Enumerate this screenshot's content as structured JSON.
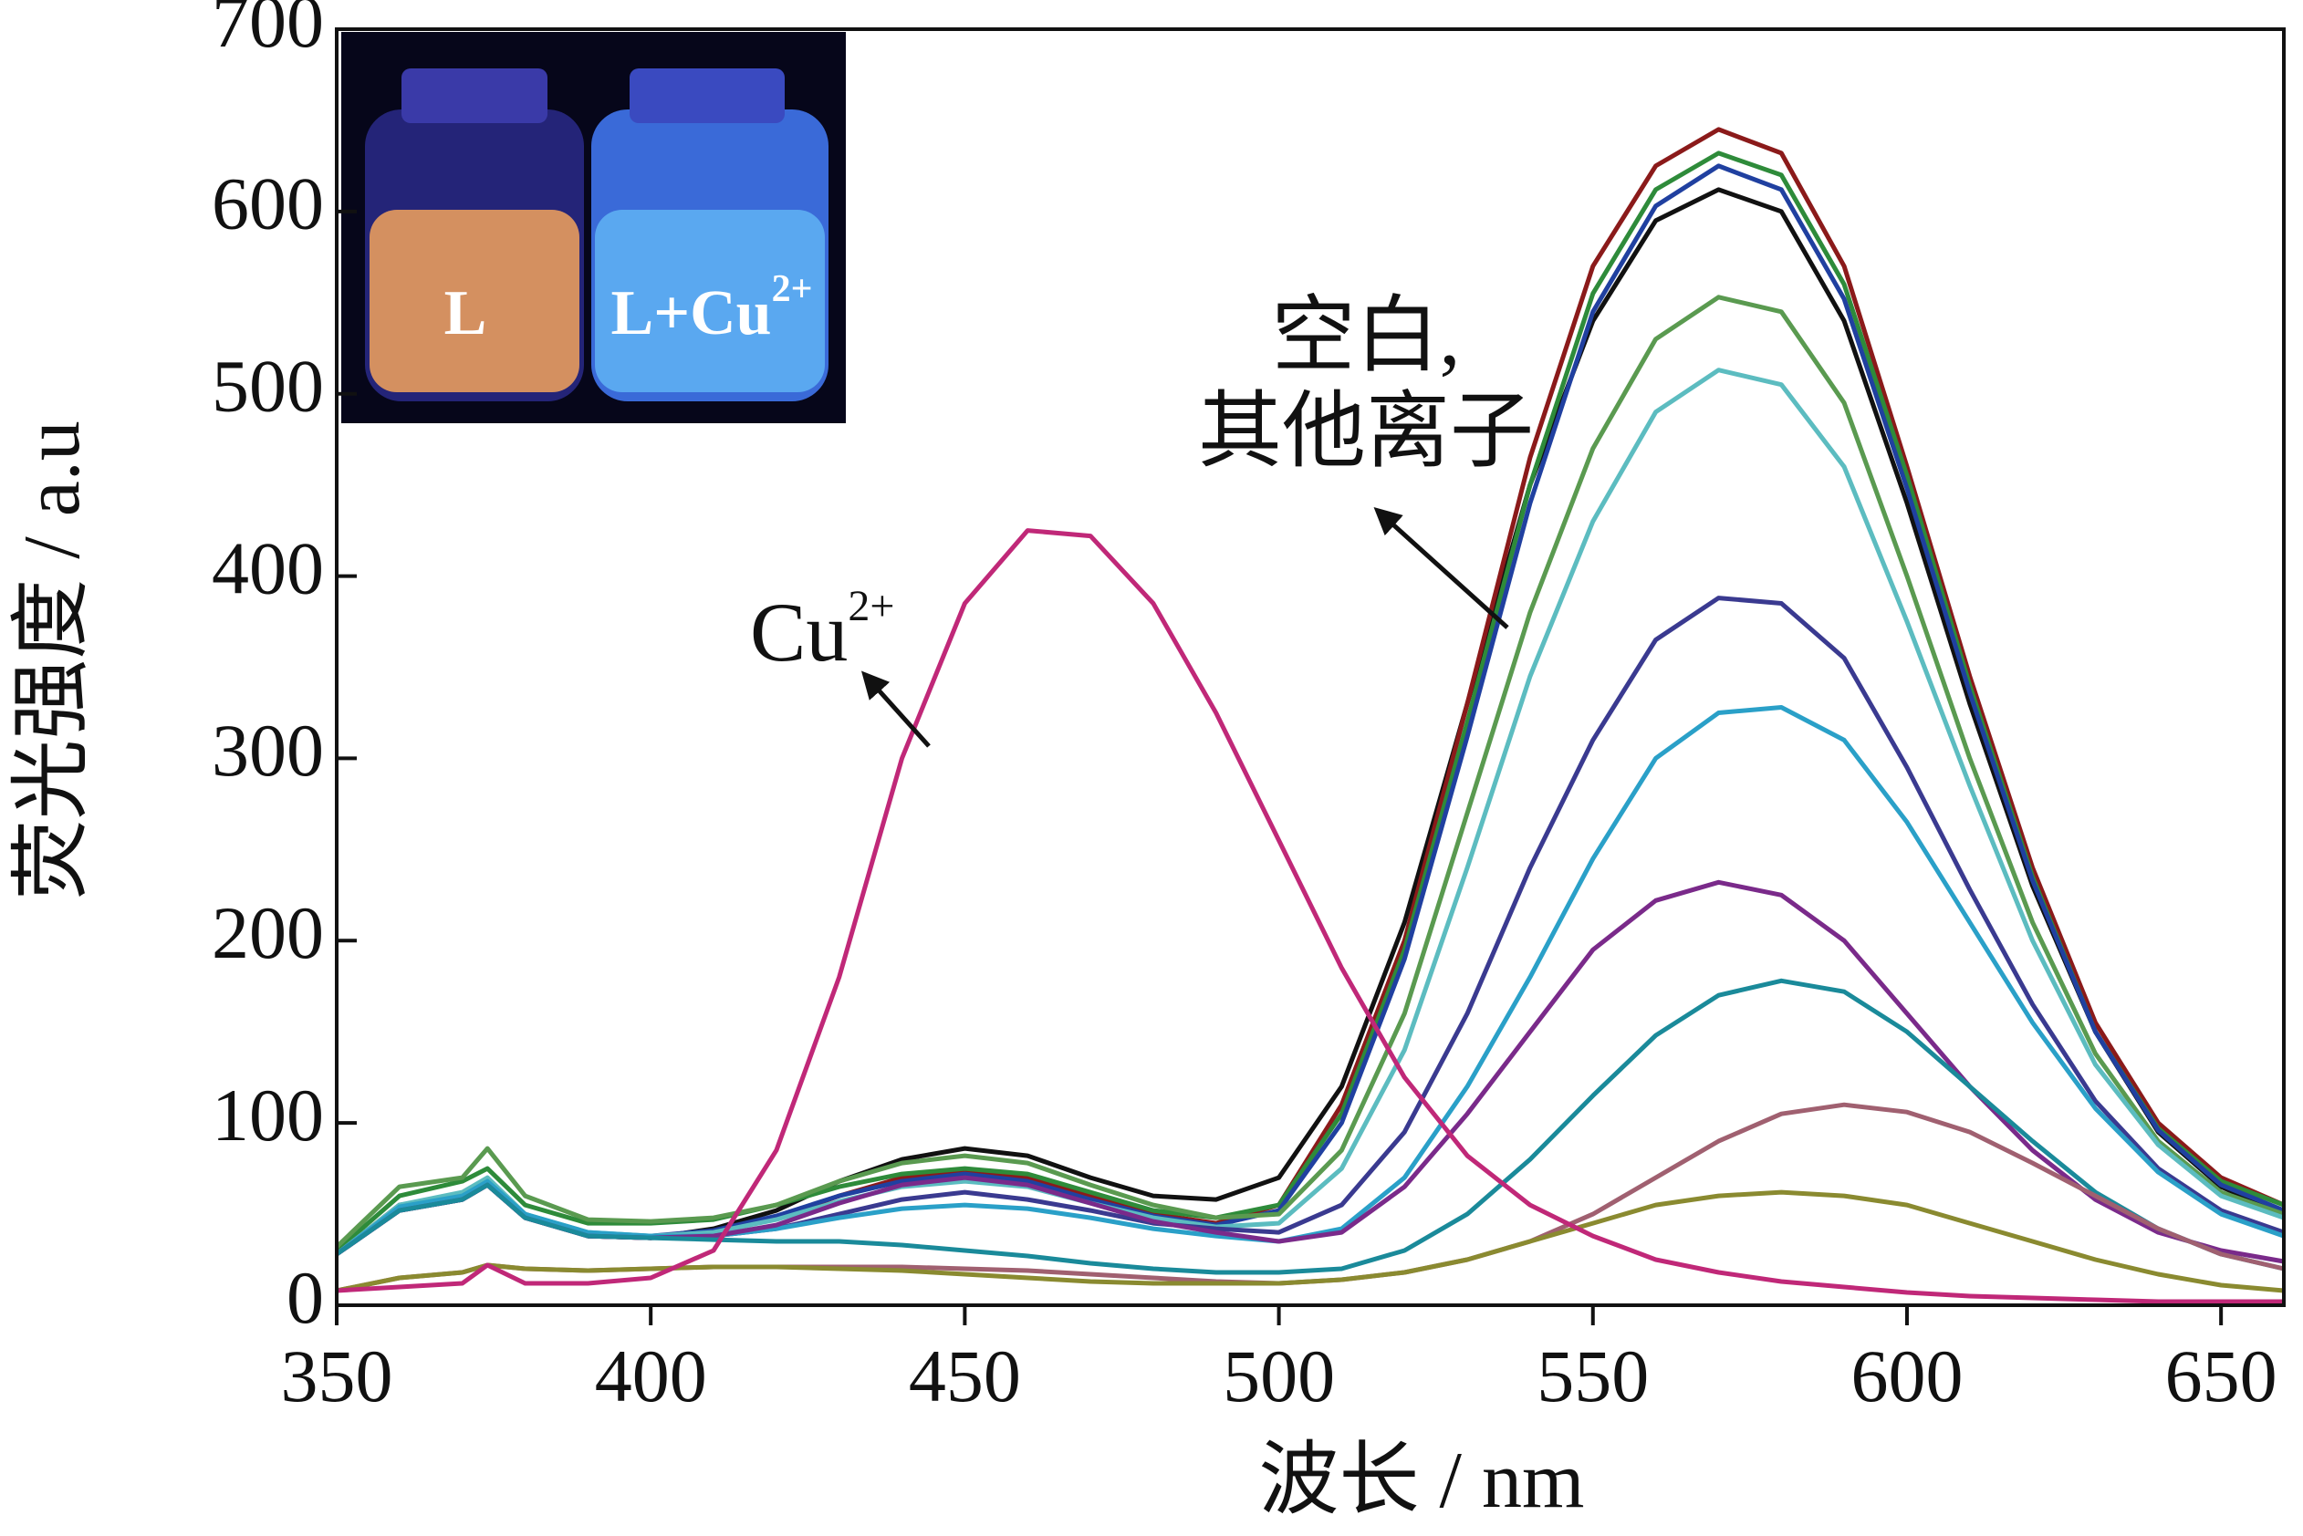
{
  "chart_data": {
    "type": "line",
    "xlabel": "波长 / nm",
    "ylabel": "荧光强度 / a.u",
    "xlim": [
      350,
      660
    ],
    "xticks": [
      350,
      400,
      450,
      500,
      550,
      600,
      650
    ],
    "ylim": [
      0,
      700
    ],
    "yticks": [
      0,
      100,
      200,
      300,
      400,
      500,
      600,
      700
    ],
    "annotations": [
      {
        "lines": [
          "空白,",
          "其他离子"
        ]
      },
      {
        "text": "Cu",
        "sup": "2+"
      }
    ],
    "inset_labels": [
      {
        "text": "L"
      },
      {
        "text": "L+Cu",
        "sup": "2+"
      }
    ],
    "x": [
      350,
      360,
      370,
      374,
      380,
      390,
      400,
      410,
      420,
      430,
      440,
      450,
      460,
      470,
      480,
      490,
      500,
      510,
      520,
      530,
      540,
      550,
      560,
      570,
      580,
      590,
      600,
      610,
      620,
      630,
      640,
      650,
      660
    ],
    "series": [
      {
        "color": "#111111",
        "values": [
          28,
          55,
          60,
          68,
          50,
          38,
          37,
          42,
          52,
          68,
          80,
          86,
          82,
          70,
          60,
          58,
          70,
          120,
          210,
          330,
          450,
          540,
          595,
          612,
          600,
          540,
          440,
          330,
          230,
          150,
          95,
          65,
          50
        ]
      },
      {
        "color": "#8b1a1a",
        "values": [
          28,
          52,
          58,
          66,
          48,
          38,
          37,
          40,
          48,
          60,
          70,
          74,
          70,
          60,
          50,
          45,
          55,
          110,
          200,
          330,
          465,
          570,
          625,
          645,
          632,
          570,
          460,
          345,
          240,
          155,
          100,
          70,
          55
        ]
      },
      {
        "color": "#2e8b3a",
        "values": [
          30,
          60,
          68,
          75,
          55,
          45,
          45,
          47,
          55,
          65,
          72,
          75,
          72,
          62,
          52,
          48,
          55,
          105,
          195,
          320,
          450,
          555,
          612,
          632,
          620,
          560,
          455,
          340,
          235,
          150,
          97,
          68,
          55
        ]
      },
      {
        "color": "#2040a0",
        "values": [
          28,
          54,
          60,
          67,
          49,
          39,
          38,
          41,
          49,
          60,
          68,
          72,
          68,
          58,
          49,
          44,
          52,
          100,
          190,
          312,
          440,
          545,
          603,
          625,
          612,
          552,
          448,
          336,
          233,
          150,
          96,
          66,
          52
        ]
      },
      {
        "color": "#5a9a50",
        "values": [
          32,
          65,
          70,
          86,
          60,
          47,
          46,
          48,
          55,
          68,
          78,
          82,
          78,
          66,
          55,
          48,
          50,
          85,
          160,
          270,
          380,
          470,
          530,
          553,
          545,
          495,
          400,
          300,
          210,
          138,
          90,
          62,
          50
        ]
      },
      {
        "color": "#5cbcc0",
        "values": [
          28,
          55,
          62,
          70,
          50,
          40,
          38,
          40,
          47,
          57,
          65,
          68,
          65,
          56,
          48,
          43,
          45,
          75,
          140,
          240,
          345,
          430,
          490,
          513,
          505,
          460,
          375,
          285,
          200,
          132,
          88,
          60,
          48
        ]
      },
      {
        "color": "#3a3a90",
        "values": [
          28,
          52,
          58,
          66,
          48,
          38,
          37,
          38,
          42,
          50,
          58,
          62,
          58,
          52,
          45,
          42,
          40,
          55,
          95,
          160,
          240,
          310,
          365,
          388,
          385,
          355,
          295,
          228,
          165,
          112,
          75,
          52,
          40
        ]
      },
      {
        "color": "#2aa0c8",
        "values": [
          28,
          54,
          60,
          68,
          50,
          40,
          38,
          38,
          42,
          48,
          53,
          55,
          53,
          48,
          42,
          38,
          35,
          42,
          70,
          120,
          180,
          245,
          300,
          325,
          328,
          310,
          265,
          210,
          155,
          108,
          73,
          50,
          38
        ]
      },
      {
        "color": "#7a2a8a",
        "values": [
          28,
          52,
          58,
          66,
          48,
          38,
          37,
          38,
          44,
          56,
          66,
          70,
          66,
          56,
          46,
          40,
          35,
          40,
          65,
          105,
          150,
          195,
          222,
          232,
          225,
          200,
          160,
          120,
          85,
          58,
          40,
          30,
          24
        ]
      },
      {
        "color": "#1a8a9a",
        "values": [
          28,
          52,
          58,
          66,
          48,
          38,
          37,
          36,
          35,
          35,
          33,
          30,
          27,
          23,
          20,
          18,
          18,
          20,
          30,
          50,
          80,
          115,
          148,
          170,
          178,
          172,
          150,
          120,
          90,
          62,
          42,
          28,
          20
        ]
      },
      {
        "color": "#a06070",
        "values": [
          8,
          15,
          18,
          22,
          20,
          19,
          20,
          21,
          21,
          21,
          21,
          20,
          19,
          17,
          15,
          13,
          12,
          14,
          18,
          25,
          35,
          50,
          70,
          90,
          105,
          110,
          106,
          95,
          78,
          60,
          42,
          28,
          20
        ]
      },
      {
        "color": "#8a8a30",
        "values": [
          8,
          15,
          18,
          22,
          20,
          19,
          20,
          21,
          21,
          20,
          19,
          17,
          15,
          13,
          12,
          12,
          12,
          14,
          18,
          25,
          35,
          45,
          55,
          60,
          62,
          60,
          55,
          45,
          35,
          25,
          17,
          11,
          8
        ]
      },
      {
        "color": "#c02878",
        "values": [
          8,
          10,
          12,
          22,
          12,
          12,
          15,
          30,
          85,
          180,
          300,
          385,
          425,
          422,
          385,
          325,
          255,
          185,
          125,
          82,
          55,
          38,
          25,
          18,
          13,
          10,
          7,
          5,
          4,
          3,
          2,
          2,
          2
        ]
      }
    ]
  }
}
